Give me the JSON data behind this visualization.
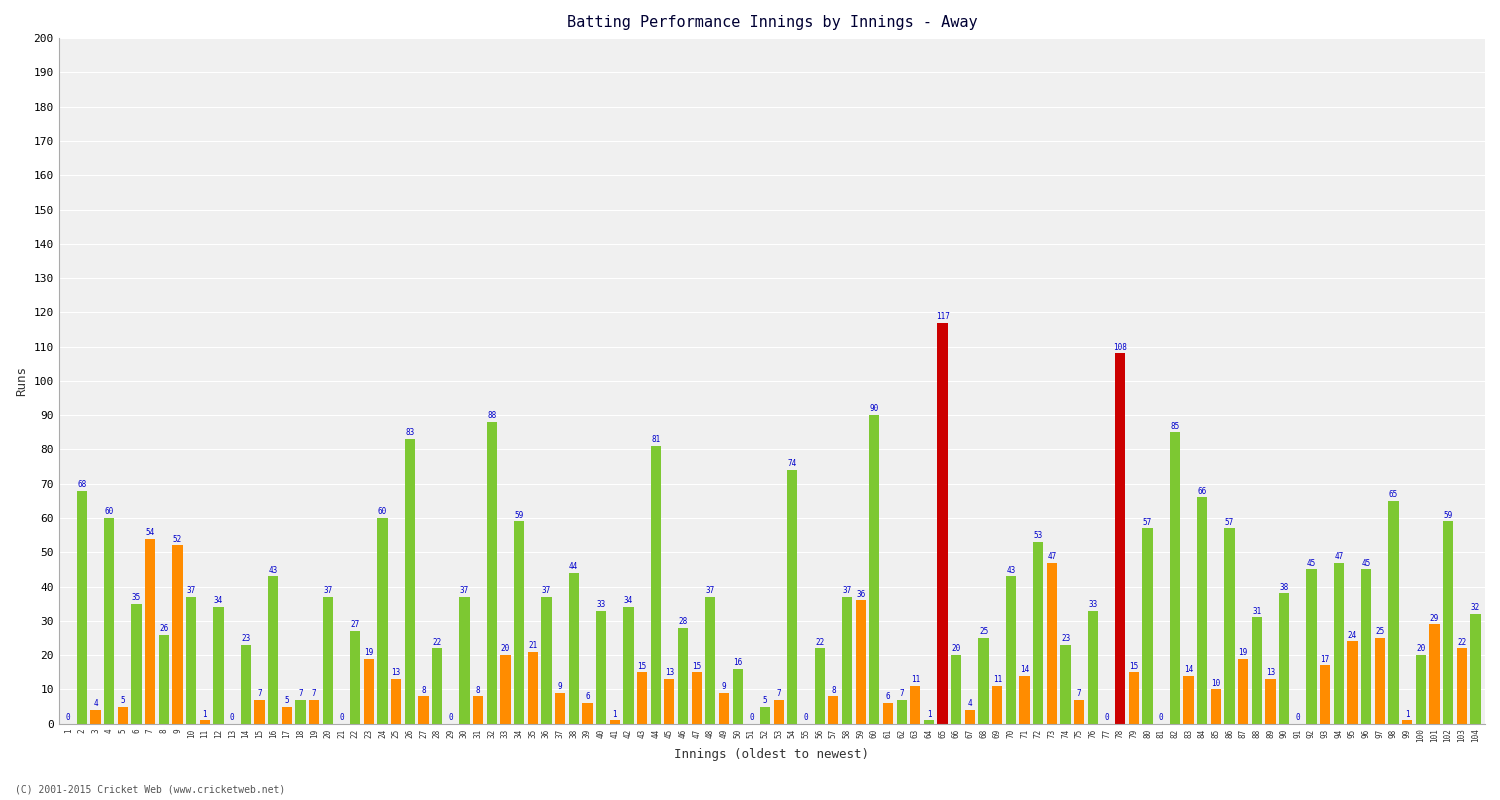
{
  "title": "Batting Performance Innings by Innings - Away",
  "xlabel": "Innings (oldest to newest)",
  "ylabel": "Runs",
  "ylim": [
    0,
    200
  ],
  "yticks": [
    0,
    10,
    20,
    30,
    40,
    50,
    60,
    70,
    80,
    90,
    100,
    110,
    120,
    130,
    140,
    150,
    160,
    170,
    180,
    190,
    200
  ],
  "bg_color": "#f0f0f0",
  "innings_labels": [
    "1",
    "2",
    "3",
    "4",
    "5",
    "6",
    "7",
    "8",
    "9",
    "10",
    "11",
    "12",
    "13",
    "14",
    "15",
    "16",
    "17",
    "18",
    "19",
    "20",
    "21",
    "22",
    "23",
    "24",
    "25",
    "26",
    "27",
    "28",
    "29",
    "30",
    "31",
    "32",
    "33",
    "34",
    "35",
    "36",
    "37",
    "38",
    "39",
    "40",
    "41",
    "42",
    "43",
    "44",
    "45",
    "46",
    "47",
    "48",
    "49",
    "50",
    "51",
    "52",
    "53",
    "54",
    "55",
    "56",
    "57",
    "58",
    "59",
    "60",
    "61",
    "62",
    "63",
    "64",
    "65",
    "66",
    "67",
    "68",
    "69",
    "70",
    "71",
    "72",
    "73",
    "74",
    "75",
    "76",
    "77",
    "78",
    "79",
    "80",
    "81",
    "82",
    "83",
    "84",
    "85",
    "86",
    "87",
    "88",
    "89",
    "90",
    "91",
    "92",
    "93",
    "94",
    "95",
    "96",
    "97",
    "98",
    "99",
    "100",
    "101",
    "102",
    "103",
    "104"
  ],
  "scores": [
    0,
    68,
    4,
    60,
    5,
    35,
    54,
    26,
    52,
    37,
    1,
    34,
    0,
    23,
    7,
    43,
    5,
    7,
    7,
    37,
    0,
    27,
    19,
    60,
    13,
    83,
    8,
    22,
    0,
    37,
    8,
    88,
    20,
    59,
    21,
    37,
    9,
    44,
    6,
    33,
    1,
    34,
    15,
    81,
    13,
    28,
    15,
    37,
    9,
    16,
    0,
    5,
    7,
    74,
    0,
    22,
    8,
    37,
    36,
    90,
    6,
    7,
    11,
    1,
    117,
    20,
    4,
    25,
    11,
    43,
    14,
    53,
    47,
    23,
    7,
    33,
    0,
    108,
    15,
    57,
    0,
    85,
    14,
    66,
    10,
    57,
    19,
    31,
    13,
    38,
    0,
    45,
    17,
    47,
    24,
    45,
    25,
    65,
    1,
    20,
    29,
    59,
    22,
    32
  ],
  "orange_color": "#ff8c00",
  "green_color": "#7dc832",
  "red_color": "#cc0000",
  "century_threshold": 100,
  "footer": "(C) 2001-2015 Cricket Web (www.cricketweb.net)"
}
